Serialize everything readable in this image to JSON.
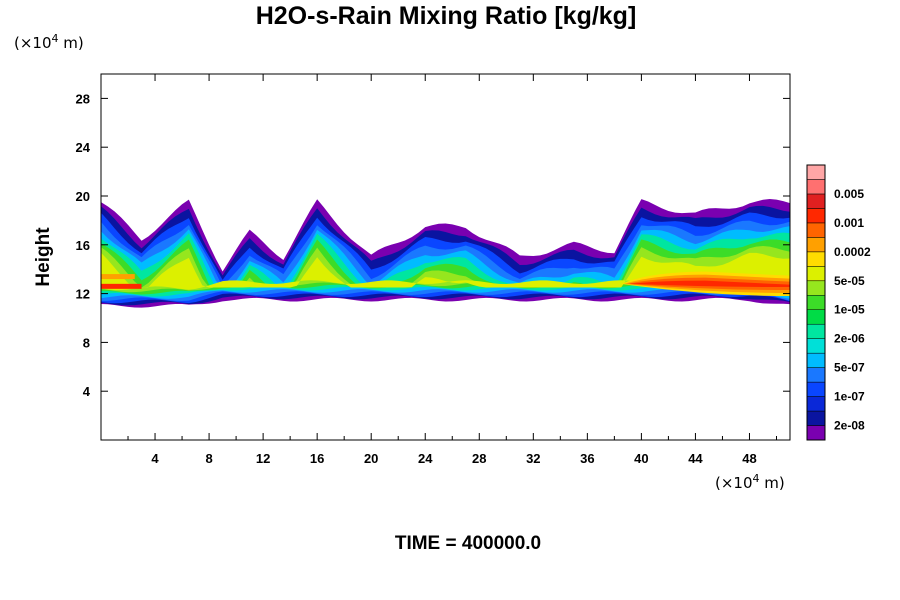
{
  "chart_data": {
    "type": "heatmap",
    "title": "H2O-s-Rain Mixing Ratio [kg/kg]",
    "xlabel": "",
    "ylabel": "Height",
    "x_unit": "(×10",
    "x_unit_exp": "4",
    "x_unit_end": " m)",
    "y_unit": "(×10",
    "y_unit_exp": "4",
    "y_unit_end": " m)",
    "xlim": [
      0,
      51
    ],
    "ylim": [
      0,
      30
    ],
    "x_ticks": [
      4,
      8,
      12,
      16,
      20,
      24,
      28,
      32,
      36,
      40,
      44,
      48
    ],
    "x_tick_labels": [
      "4",
      "8",
      "12",
      "16",
      "20",
      "24",
      "28",
      "32",
      "36",
      "40",
      "44",
      "48"
    ],
    "y_ticks": [
      4,
      8,
      12,
      16,
      20,
      24,
      28
    ],
    "y_tick_labels": [
      "4",
      "8",
      "12",
      "16",
      "20",
      "24",
      "28"
    ],
    "grid": false,
    "colorbar": {
      "placement": "right",
      "colors": [
        "#7a00b0",
        "#0a14a0",
        "#0a28d8",
        "#0a46ff",
        "#1a78ff",
        "#00bcff",
        "#00e0d8",
        "#00e6a0",
        "#00dc46",
        "#3cdc28",
        "#96e61e",
        "#dcf000",
        "#ffdc00",
        "#ffa000",
        "#ff6400",
        "#ff2800",
        "#e02020",
        "#ff7070",
        "#ffa6a6"
      ],
      "labels": [
        "2e-08",
        "1e-07",
        "5e-07",
        "2e-06",
        "1e-05",
        "5e-05",
        "0.0002",
        "0.001",
        "0.005"
      ]
    },
    "cloud_band": {
      "extent_x": [
        0,
        51
      ],
      "bottom_height": [
        11,
        11,
        11,
        11.5,
        11.5,
        11.5,
        11.5,
        11.5,
        11.5,
        11.5,
        11.5,
        11.5,
        11.5,
        11.5,
        11.5,
        11.5,
        11
      ],
      "top_height": [
        19.5,
        16.5,
        19.5,
        14,
        17,
        15,
        19.5,
        15,
        17.5,
        17.5,
        15,
        16,
        15.5,
        19.5,
        18.5,
        19.5,
        19.5
      ],
      "sample_x": [
        0,
        3,
        6.5,
        9,
        11,
        13.5,
        16,
        20,
        24,
        27,
        31,
        35,
        38,
        40,
        44,
        48,
        51
      ],
      "max_region": {
        "x": [
          38.5,
          51
        ],
        "height": [
          11.8,
          13.8
        ],
        "value_level": "0.001"
      }
    },
    "annotation": "TIME = 400000.0"
  }
}
